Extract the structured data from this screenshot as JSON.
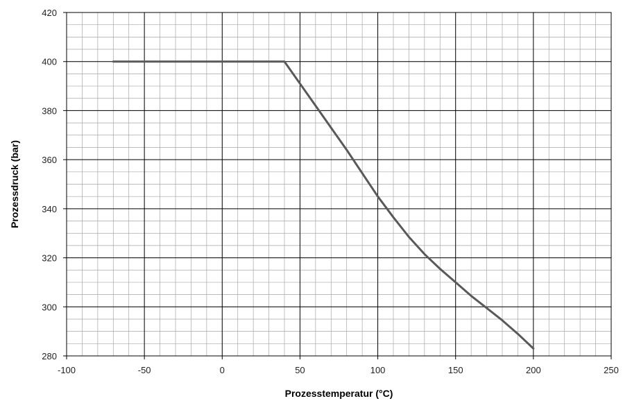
{
  "chart_data": {
    "type": "line",
    "xlabel": "Prozesstemperatur (°C)",
    "ylabel": "Prozessdruck (bar)",
    "xlim": [
      -100,
      250
    ],
    "ylim": [
      280,
      420
    ],
    "x_major_ticks": [
      -100,
      -50,
      0,
      50,
      100,
      150,
      200,
      250
    ],
    "y_major_ticks": [
      280,
      300,
      320,
      340,
      360,
      380,
      400,
      420
    ],
    "x_tick_labels": [
      "-100",
      "-50",
      "0",
      "50",
      "100",
      "150",
      "200",
      "250"
    ],
    "y_tick_labels": [
      "280",
      "300",
      "320",
      "340",
      "360",
      "380",
      "400",
      "420"
    ],
    "x_minor_step": 10,
    "y_minor_step": 5,
    "grid": true,
    "line_color": "#595959",
    "series": [
      {
        "x": [
          -70,
          -50,
          0,
          40,
          50,
          60,
          70,
          80,
          90,
          100,
          110,
          120,
          130,
          140,
          150,
          160,
          170,
          180,
          190,
          200
        ],
        "y": [
          400,
          400,
          400,
          400,
          391,
          382,
          373,
          364,
          354.5,
          345,
          336.5,
          328.5,
          321.5,
          315.5,
          310,
          304.5,
          299.5,
          294.5,
          289,
          283
        ]
      }
    ]
  }
}
